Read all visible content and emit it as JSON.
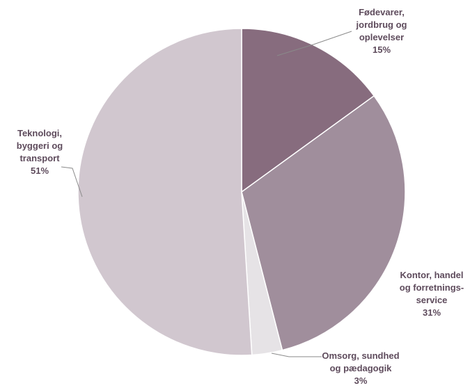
{
  "chart_data": {
    "type": "pie",
    "title": "",
    "slices": [
      {
        "label": "Fødevarer, jordbrug og oplevelser",
        "lines": [
          "Fødevarer,",
          "jordbrug og",
          "oplevelser"
        ],
        "value": 15,
        "value_label": "15%",
        "color": "#876c7e"
      },
      {
        "label": "Kontor, handel og forretningsservice",
        "lines": [
          "Kontor, handel",
          "og forretnings-",
          "service"
        ],
        "value": 31,
        "value_label": "31%",
        "color": "#a08e9c"
      },
      {
        "label": "Omsorg, sundhed og pædagogik",
        "lines": [
          "Omsorg, sundhed",
          "og pædagogik"
        ],
        "value": 3,
        "value_label": "3%",
        "color": "#e6e3e6"
      },
      {
        "label": "Teknologi, byggeri og transport",
        "lines": [
          "Teknologi,",
          "byggeri og",
          "transport"
        ],
        "value": 51,
        "value_label": "51%",
        "color": "#d1c7cf"
      }
    ],
    "start_angle_deg": 0,
    "direction": "clockwise",
    "legend": "none",
    "data_labels": "outside with leader lines"
  }
}
